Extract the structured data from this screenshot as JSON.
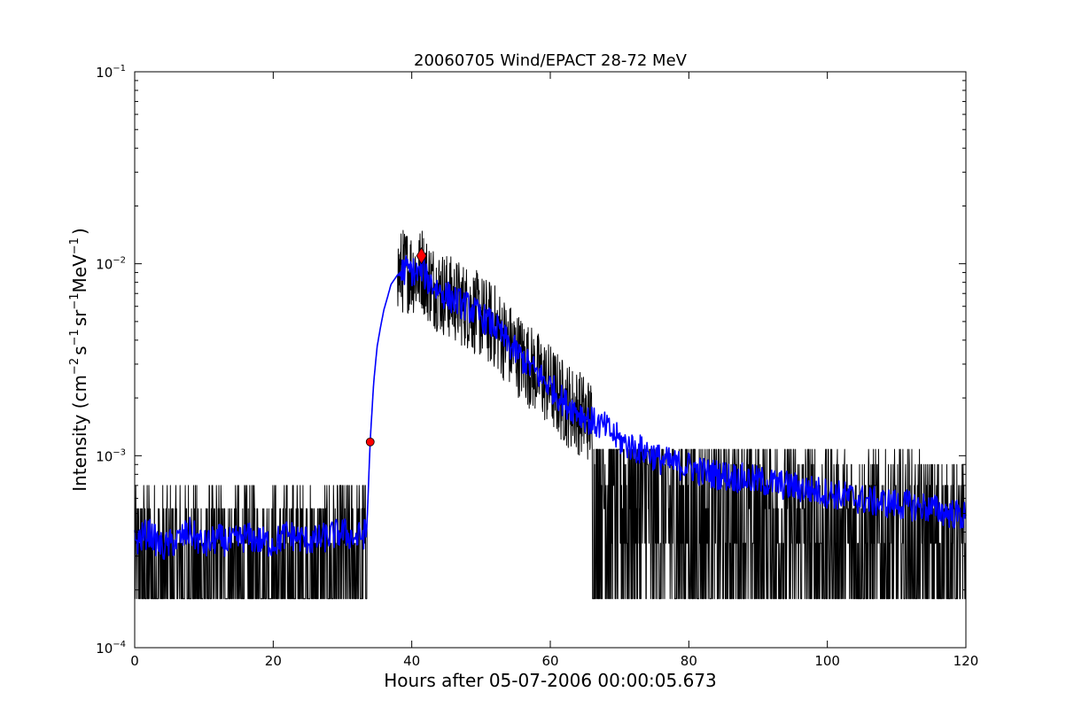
{
  "chart_data": {
    "type": "line",
    "title": "20060705 Wind/EPACT 28-72 MeV",
    "xlabel": "Hours after 05-07-2006 00:00:05.673",
    "ylabel": {
      "base": "Intensity (cm",
      "exp1": "−2",
      "s": "s",
      "exp2": "−1",
      "sr": "sr",
      "exp3": "−1",
      "mev": "MeV",
      "exp4": "−1",
      "close": ")"
    },
    "xlim": [
      0,
      120
    ],
    "ylim": [
      0.0001,
      0.1
    ],
    "yscale": "log",
    "grid": false,
    "x_ticks": [
      0,
      20,
      40,
      60,
      80,
      100,
      120
    ],
    "x_tick_labels": [
      "0",
      "20",
      "40",
      "60",
      "80",
      "100",
      "120"
    ],
    "y_ticks": [
      0.0001,
      0.001,
      0.01,
      0.1
    ],
    "y_tick_labels": [
      {
        "base": "10",
        "exp": "−4"
      },
      {
        "base": "10",
        "exp": "−3"
      },
      {
        "base": "10",
        "exp": "−2"
      },
      {
        "base": "10",
        "exp": "−1"
      }
    ],
    "series": [
      {
        "color": "#000000",
        "style": "raw",
        "x": [
          0,
          2,
          4,
          6,
          8,
          10,
          12,
          14,
          16,
          18,
          20,
          22,
          24,
          26,
          28,
          30,
          32,
          33.5,
          34,
          34.5,
          35,
          35.5,
          36,
          36.5,
          37,
          38,
          39,
          40,
          41,
          41.5,
          42,
          44,
          46,
          48,
          50,
          52,
          54,
          56,
          58,
          60,
          62,
          64,
          66,
          68,
          70,
          72,
          74,
          76,
          78,
          80,
          82,
          84,
          86,
          88,
          90,
          92,
          94,
          96,
          98,
          100,
          102,
          104,
          106,
          108,
          110,
          112,
          114,
          116,
          118,
          120
        ],
        "values": [
          0.00035,
          0.0004,
          0.00033,
          0.00036,
          0.0004,
          0.00034,
          0.00037,
          0.00035,
          0.00038,
          0.00036,
          0.00035,
          0.00039,
          0.00037,
          0.00036,
          0.00038,
          0.0004,
          0.00037,
          0.0004,
          0.0012,
          0.0024,
          0.0037,
          0.0047,
          0.0058,
          0.0067,
          0.0078,
          0.0088,
          0.0093,
          0.0092,
          0.0088,
          0.0096,
          0.0085,
          0.0072,
          0.0065,
          0.006,
          0.0053,
          0.0047,
          0.0038,
          0.0032,
          0.0027,
          0.0023,
          0.0019,
          0.0017,
          0.0015,
          0.0014,
          0.0012,
          0.0011,
          0.00105,
          0.00095,
          0.0009,
          0.00088,
          0.00082,
          0.0008,
          0.00078,
          0.00076,
          0.00074,
          0.00072,
          0.0007,
          0.00068,
          0.00066,
          0.00064,
          0.00062,
          0.0006,
          0.00058,
          0.00057,
          0.00056,
          0.00055,
          0.00054,
          0.00052,
          0.0005,
          0.00048
        ]
      },
      {
        "color": "#0000ff",
        "style": "smoothed",
        "x": [
          0,
          2,
          4,
          6,
          8,
          10,
          12,
          14,
          16,
          18,
          20,
          22,
          24,
          26,
          28,
          30,
          32,
          33.5,
          34,
          34.5,
          35,
          35.5,
          36,
          36.5,
          37,
          38,
          39,
          40,
          41,
          41.5,
          42,
          44,
          46,
          48,
          50,
          52,
          54,
          56,
          58,
          60,
          62,
          64,
          66,
          68,
          70,
          72,
          74,
          76,
          78,
          80,
          82,
          84,
          86,
          88,
          90,
          92,
          94,
          96,
          98,
          100,
          102,
          104,
          106,
          108,
          110,
          112,
          114,
          116,
          118,
          120
        ],
        "values": [
          0.00035,
          0.0004,
          0.00033,
          0.00036,
          0.0004,
          0.00034,
          0.00037,
          0.00035,
          0.00038,
          0.00036,
          0.00035,
          0.00039,
          0.00037,
          0.00036,
          0.00038,
          0.0004,
          0.00037,
          0.0004,
          0.0012,
          0.0024,
          0.0037,
          0.0047,
          0.0058,
          0.0067,
          0.0078,
          0.0088,
          0.0093,
          0.0092,
          0.0088,
          0.0096,
          0.0085,
          0.0072,
          0.0065,
          0.006,
          0.0053,
          0.0047,
          0.0038,
          0.0032,
          0.0027,
          0.0023,
          0.0019,
          0.0017,
          0.0015,
          0.0014,
          0.0012,
          0.0011,
          0.00105,
          0.00095,
          0.0009,
          0.00088,
          0.00082,
          0.0008,
          0.00078,
          0.00076,
          0.00074,
          0.00072,
          0.0007,
          0.00068,
          0.00066,
          0.00064,
          0.00062,
          0.0006,
          0.00058,
          0.00057,
          0.00056,
          0.00055,
          0.00054,
          0.00052,
          0.0005,
          0.00048
        ]
      }
    ],
    "markers": [
      {
        "shape": "circle",
        "color": "#ff0000",
        "x": 34.0,
        "y": 0.00118
      },
      {
        "shape": "diamond",
        "color": "#ff0000",
        "x": 41.4,
        "y": 0.011
      }
    ]
  }
}
